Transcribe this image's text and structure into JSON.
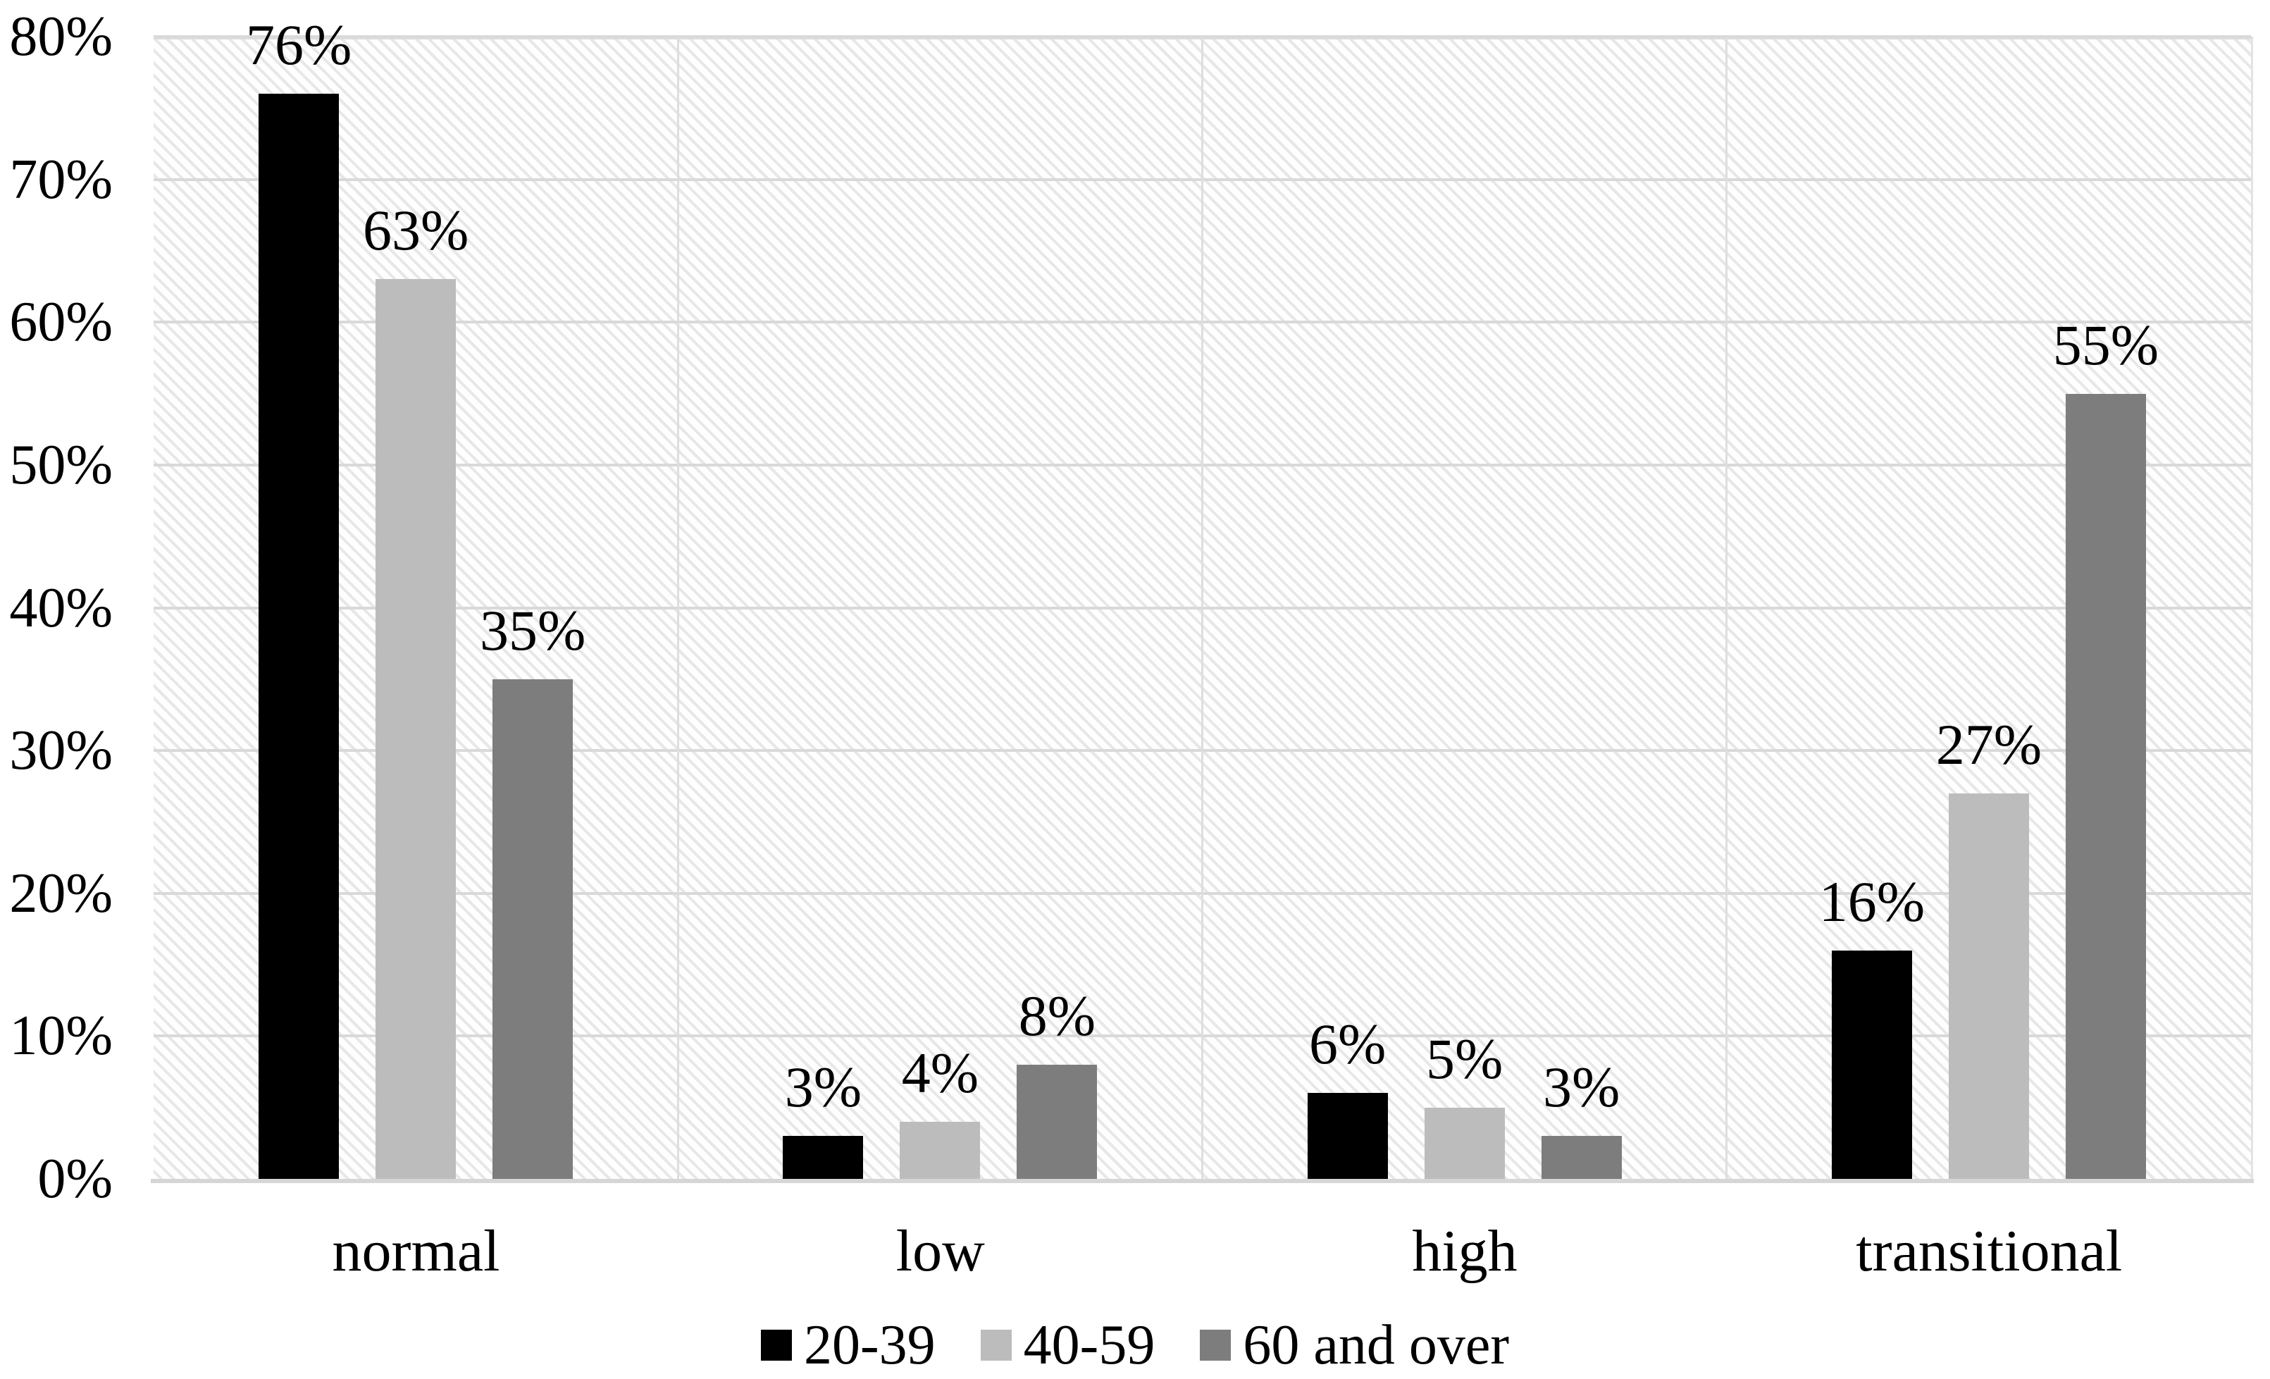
{
  "chart_data": {
    "type": "bar",
    "title": "",
    "categories": [
      "normal",
      "low",
      "high",
      "transitional"
    ],
    "series": [
      {
        "name": "20-39",
        "color": "#000000",
        "values": [
          76,
          3,
          6,
          16
        ]
      },
      {
        "name": "40-59",
        "color": "#bcbcbc",
        "values": [
          63,
          4,
          5,
          27
        ]
      },
      {
        "name": "60 and over",
        "color": "#7d7d7d",
        "values": [
          35,
          8,
          3,
          55
        ]
      }
    ],
    "data_labels": [
      [
        "76%",
        "3%",
        "6%",
        "16%"
      ],
      [
        "63%",
        "4%",
        "5%",
        "27%"
      ],
      [
        "35%",
        "8%",
        "3%",
        "55%"
      ]
    ],
    "y_axis": {
      "min": 0,
      "max": 80,
      "tick_step": 10,
      "tick_labels": [
        "0%",
        "10%",
        "20%",
        "30%",
        "40%",
        "50%",
        "60%",
        "70%",
        "80%"
      ]
    },
    "grid": true,
    "legend_position": "bottom",
    "plot_area_pattern": "light-downward-diagonal-hatch",
    "colors": {
      "background": "#ffffff",
      "gridline": "#d9d9d9",
      "hatch_line": "#e7e7e7",
      "text": "#000000"
    }
  }
}
